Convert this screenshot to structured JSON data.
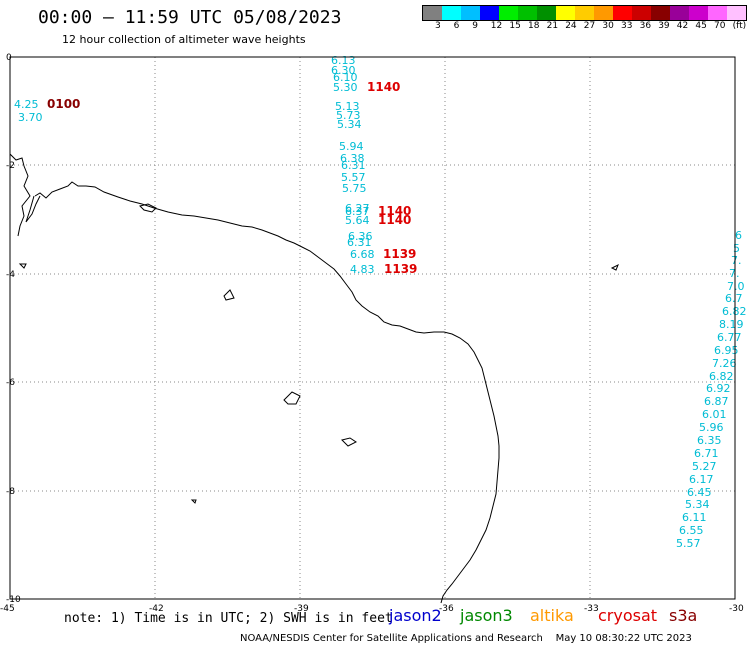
{
  "title": "00:00 – 11:59 UTC 05/08/2023",
  "subtitle": "12 hour collection of altimeter wave heights",
  "legend": {
    "colors": [
      "#808080",
      "#00ffff",
      "#00bfff",
      "#0000ff",
      "#00ee00",
      "#00c000",
      "#009000",
      "#ffff00",
      "#ffcc00",
      "#ff9900",
      "#ff0000",
      "#cc0000",
      "#880000",
      "#990099",
      "#cc00cc",
      "#ff66ff",
      "#ffc0ff"
    ],
    "labels": [
      "3",
      "6",
      "9",
      "12",
      "15",
      "18",
      "21",
      "24",
      "27",
      "30",
      "33",
      "36",
      "39",
      "42",
      "45",
      "70",
      "(ft)"
    ]
  },
  "axes": {
    "x_ticks": [
      "-45",
      "-42",
      "-39",
      "-36",
      "-33",
      "-30"
    ],
    "y_ticks": [
      "0",
      "-2",
      "-4",
      "-6",
      "-8",
      "-10"
    ]
  },
  "note": "note: 1) Time is in UTC; 2) SWH is in feet",
  "satellites": [
    {
      "name": "jason2",
      "color": "#0000cc"
    },
    {
      "name": "jason3",
      "color": "#008800"
    },
    {
      "name": "altika",
      "color": "#ff9900"
    },
    {
      "name": "cryosat",
      "color": "#dd0000"
    },
    {
      "name": "s3a",
      "color": "#880000"
    }
  ],
  "credit": "NOAA/NESDIS Center for Satellite Applications and Research    May 10 08:30:22 UTC 2023",
  "track_colors": {
    "cyan": "#00bcd4",
    "red": "#dd0000",
    "darkred": "#880000"
  },
  "tracks": {
    "left_values": [
      "4.25",
      "3.70"
    ],
    "left_time": "0100",
    "center_values": [
      "6.13",
      "6.30",
      "6.10",
      "5.30",
      "5.13",
      "5.73",
      "5.34",
      "5.94",
      "6.38",
      "6.31",
      "5.57",
      "5.75",
      "6.27",
      "6.37",
      "5.64",
      "6.36",
      "6.31",
      "6.68",
      "4.83"
    ],
    "center_times": [
      "1140",
      "1140",
      "1140",
      "1139",
      "1139"
    ],
    "right_values": [
      "6",
      "5",
      "7.",
      "7.",
      "7.0",
      "6.7",
      "6.82",
      "8.19",
      "6.77",
      "6.95",
      "7.26",
      "6.82",
      "6.92",
      "6.87",
      "6.01",
      "5.96",
      "6.35",
      "6.71",
      "5.27",
      "6.17",
      "6.45",
      "5.34",
      "6.11",
      "6.55",
      "5.57"
    ]
  }
}
